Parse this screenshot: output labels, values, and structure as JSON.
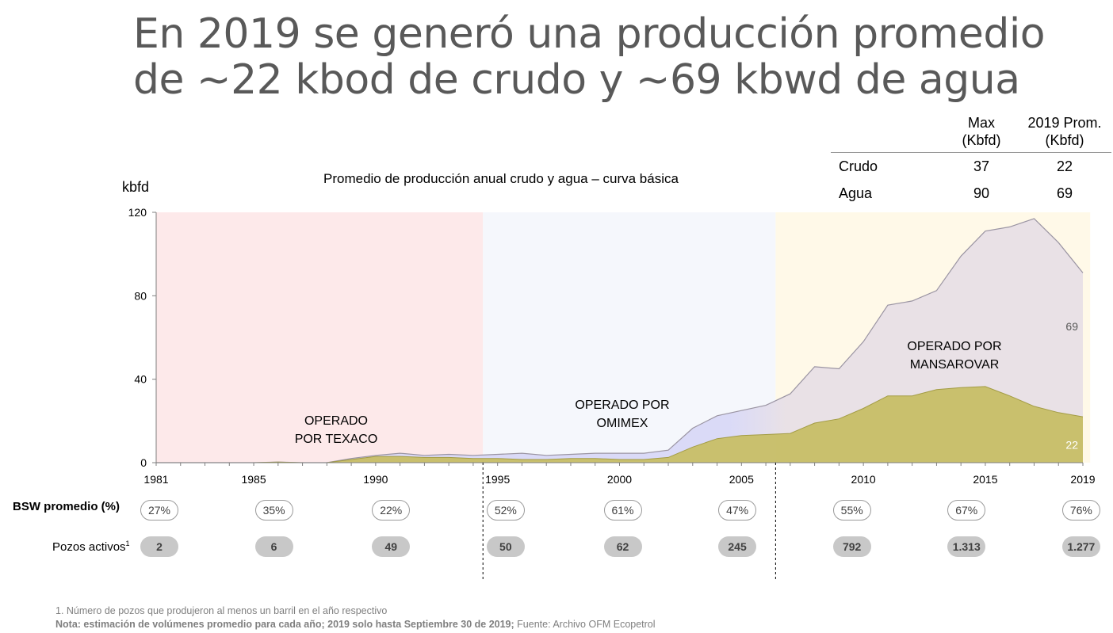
{
  "title": {
    "line1": "En 2019 se generó una producción promedio",
    "line2": "de ~22 kbod de crudo y ~69 kbwd de agua"
  },
  "summary_table": {
    "col_max": [
      "Max",
      "(Kbfd)"
    ],
    "col_prom": [
      "2019 Prom.",
      "(Kbfd)"
    ],
    "rows": [
      {
        "label": "Crudo",
        "max": "37",
        "prom": "22"
      },
      {
        "label": "Agua",
        "max": "90",
        "prom": "69"
      }
    ]
  },
  "colors": {
    "texaco_bg": "#fde9ea",
    "omimex_bg": "#f5f7fc",
    "mansarovar_bg": "#fff9e8",
    "crudo_fill": "#c4bb62",
    "crudo_line": "#a39c45",
    "agua_fill_early": "#d9d9f7",
    "agua_fill_late": "#e8e0e6",
    "agua_line": "#9a94a2",
    "axis": "#7f7f7f"
  },
  "chart_data": {
    "type": "area",
    "title": "Promedio de producción anual crudo y agua – curva básica",
    "ylabel": "kbfd",
    "ylim": [
      0,
      120
    ],
    "yticks": [
      0,
      40,
      80,
      120
    ],
    "xlim": [
      1981,
      2019
    ],
    "xticks": [
      1981,
      1985,
      1990,
      1995,
      2000,
      2005,
      2010,
      2015,
      2019
    ],
    "x": [
      1981,
      1982,
      1983,
      1984,
      1985,
      1986,
      1987,
      1988,
      1989,
      1990,
      1991,
      1992,
      1993,
      1994,
      1995,
      1996,
      1997,
      1998,
      1999,
      2000,
      2001,
      2002,
      2003,
      2004,
      2005,
      2006,
      2007,
      2008,
      2009,
      2010,
      2011,
      2012,
      2013,
      2014,
      2015,
      2016,
      2017,
      2018,
      2019
    ],
    "series": [
      {
        "name": "Crudo",
        "values": [
          0,
          0,
          0,
          0,
          0,
          0.3,
          0,
          0,
          1.5,
          3,
          3,
          2.5,
          2.5,
          2,
          2,
          1.5,
          1.5,
          2,
          2,
          1.5,
          1.5,
          2.5,
          7.5,
          11.5,
          13,
          13.5,
          14,
          19,
          21,
          26,
          32,
          32,
          35,
          36,
          36.5,
          32,
          27,
          24,
          22
        ]
      },
      {
        "name": "Agua",
        "values": [
          0,
          0,
          0,
          0,
          0,
          0,
          0,
          0,
          0.5,
          0.5,
          1.5,
          1,
          1.5,
          1.5,
          2,
          3,
          2,
          2,
          2.5,
          3,
          3,
          3.5,
          9,
          11,
          12,
          14,
          19,
          27,
          24,
          32,
          43.5,
          45.5,
          47.5,
          63,
          74.5,
          81,
          90,
          81.5,
          69
        ]
      }
    ],
    "series_labels": {
      "agua_2019": "69",
      "crudo_2019": "22"
    },
    "eras": [
      {
        "label_lines": [
          "OPERADO",
          "POR TEXACO"
        ],
        "from": 1981,
        "to": 1994.4
      },
      {
        "label_lines": [
          "OPERADO POR",
          "OMIMEX"
        ],
        "from": 1994.4,
        "to": 2006.4
      },
      {
        "label_lines": [
          "OPERADO POR",
          "MANSAROVAR"
        ],
        "from": 2006.4,
        "to": 2019.3
      }
    ]
  },
  "indicators": {
    "bsw_label": "BSW  promedio (%)",
    "wells_label": "Pozos activos",
    "wells_sup": "1",
    "points": [
      {
        "year": 1981,
        "bsw": "27%",
        "wells": "2"
      },
      {
        "year": 1985.7,
        "bsw": "35%",
        "wells": "6"
      },
      {
        "year": 1990.5,
        "bsw": "22%",
        "wells": "49"
      },
      {
        "year": 1995.2,
        "bsw": "52%",
        "wells": "50"
      },
      {
        "year": 2000,
        "bsw": "61%",
        "wells": "62"
      },
      {
        "year": 2004.7,
        "bsw": "47%",
        "wells": "245"
      },
      {
        "year": 2009.4,
        "bsw": "55%",
        "wells": "792"
      },
      {
        "year": 2014.1,
        "bsw": "67%",
        "wells": "1.313"
      },
      {
        "year": 2018.8,
        "bsw": "76%",
        "wells": "1.277"
      }
    ]
  },
  "footnotes": {
    "note1": "1. Número de pozos que produjeron al menos un barril en el año respectivo",
    "note2_bold": "Nota: estimación de volúmenes promedio para cada año; 2019 solo hasta Septiembre 30 de 2019;",
    "note2_rest": " Fuente: Archivo OFM Ecopetrol"
  }
}
